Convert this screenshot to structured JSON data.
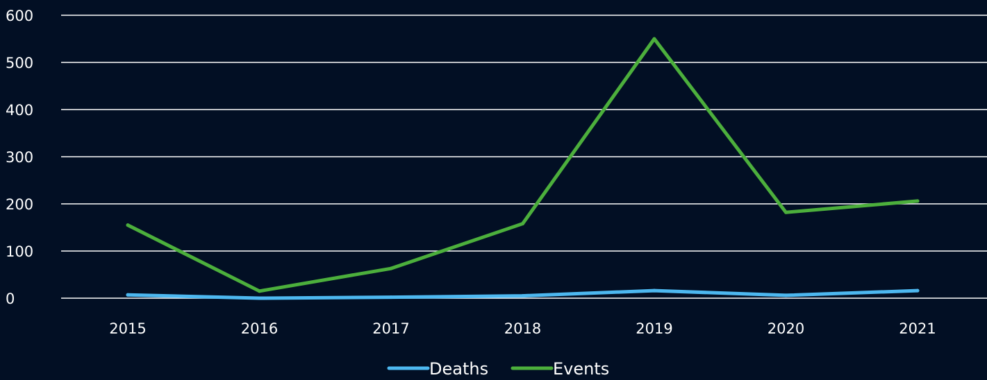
{
  "chart_data": {
    "type": "line",
    "title": "",
    "xlabel": "",
    "ylabel": "",
    "categories": [
      "2015",
      "2016",
      "2017",
      "2018",
      "2019",
      "2020",
      "2021"
    ],
    "ylim": [
      0,
      600
    ],
    "yticks": [
      "0",
      "100",
      "200",
      "300",
      "400",
      "500",
      "600"
    ],
    "grid": true,
    "legend_position": "bottom",
    "series": [
      {
        "name": "Deaths",
        "color": "#4db8f0",
        "values": [
          7,
          0,
          2,
          5,
          16,
          6,
          16
        ]
      },
      {
        "name": "Events",
        "color": "#4caf3c",
        "values": [
          155,
          15,
          63,
          158,
          550,
          182,
          206
        ]
      }
    ]
  }
}
